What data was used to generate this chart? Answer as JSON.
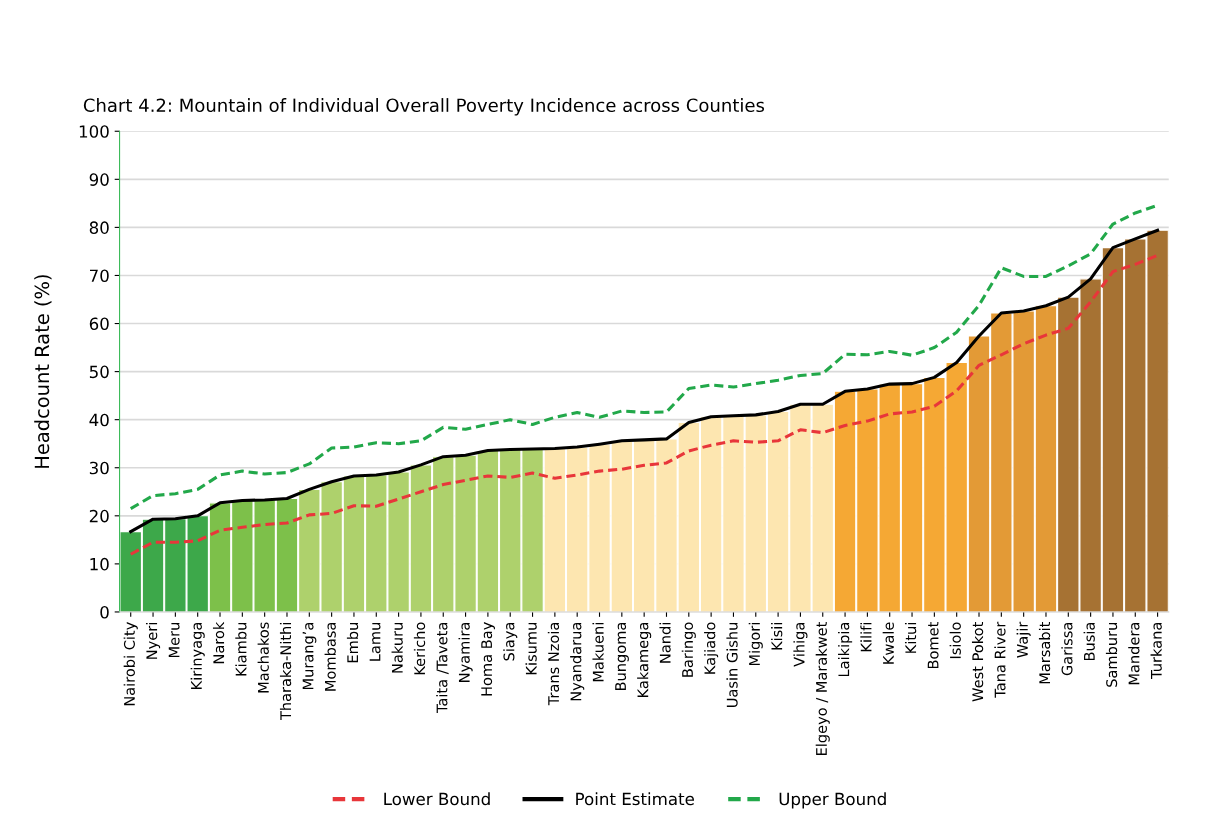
{
  "chart_data": {
    "type": "bar",
    "title": "Chart 4.2: Mountain of Individual Overall Poverty Incidence across Counties",
    "ylabel": "Headcount Rate (%)",
    "categories": [
      "Nairobi City",
      "Nyeri",
      "Meru",
      "Kirinyaga",
      "Narok",
      "Kiambu",
      "Machakos",
      "Tharaka-Nithi",
      "Murang’a",
      "Mombasa",
      "Embu",
      "Lamu",
      "Nakuru",
      "Kericho",
      "Taita /Taveta",
      "Nyamira",
      "Homa Bay",
      "Siaya",
      "Kisumu",
      "Trans Nzoia",
      "Nyandarua",
      "Makueni",
      "Bungoma",
      "Kakamega",
      "Nandi",
      "Baringo",
      "Kajiado",
      "Uasin Gishu",
      "Migori",
      "Kisii",
      "Vihiga",
      "Elgeyo / Marakwet",
      "Laikipia",
      "Kilifi",
      "Kwale",
      "Kitui",
      "Bomet",
      "Isiolo",
      "West Pokot",
      "Tana River",
      "Wajir",
      "Marsabit",
      "Garissa",
      "Busia",
      "Samburu",
      "Mandera",
      "Turkana"
    ],
    "series": [
      {
        "colors": [
          "#3da84a",
          "#3da84a",
          "#3da84a",
          "#3da84a",
          "#7dc04a",
          "#7dc04a",
          "#7dc04a",
          "#7dc04a",
          "#aed16c",
          "#aed16c",
          "#aed16c",
          "#aed16c",
          "#aed16c",
          "#aed16c",
          "#aed16c",
          "#aed16c",
          "#aed16c",
          "#aed16c",
          "#aed16c",
          "#fde6b0",
          "#fde6b0",
          "#fde6b0",
          "#fde6b0",
          "#fde6b0",
          "#fde6b0",
          "#fde6b0",
          "#fde6b0",
          "#fde6b0",
          "#fde6b0",
          "#fde6b0",
          "#fde6b0",
          "#fde6b0",
          "#f5a834",
          "#f5a834",
          "#f5a834",
          "#f5a834",
          "#f5a834",
          "#f5a834",
          "#e39a36",
          "#e39a36",
          "#e39a36",
          "#e39a36",
          "#a67233",
          "#a67233",
          "#a67233",
          "#a67233",
          "#a67233"
        ],
        "values": [
          16.7,
          19.3,
          19.4,
          20.0,
          22.7,
          23.2,
          23.3,
          23.6,
          25.5,
          27.1,
          28.3,
          28.5,
          29.1,
          30.6,
          32.3,
          32.6,
          33.6,
          33.8,
          33.9,
          34.0,
          34.3,
          34.9,
          35.6,
          35.8,
          36.0,
          39.4,
          40.6,
          40.8,
          41.0,
          41.7,
          43.2,
          43.2,
          45.9,
          46.4,
          47.4,
          47.5,
          48.8,
          51.9,
          57.4,
          62.2,
          62.6,
          63.7,
          65.5,
          69.3,
          75.8,
          77.6,
          79.4
        ]
      },
      {
        "type": "line",
        "name": "Lower Bound",
        "color": "#e8363a",
        "line_style": "dashed",
        "values": [
          12.0,
          14.5,
          14.5,
          14.8,
          17.0,
          17.6,
          18.2,
          18.5,
          20.2,
          20.5,
          22.1,
          22.0,
          23.5,
          25.0,
          26.5,
          27.4,
          28.3,
          28.0,
          28.9,
          27.8,
          28.5,
          29.3,
          29.7,
          30.5,
          31.0,
          33.5,
          34.7,
          35.6,
          35.3,
          35.6,
          37.9,
          37.3,
          38.8,
          39.7,
          41.2,
          41.6,
          42.8,
          46.0,
          51.3,
          53.5,
          55.8,
          57.6,
          59.0,
          64.5,
          70.8,
          72.3,
          74.2
        ]
      },
      {
        "type": "line",
        "name": "Point Estimate",
        "color": "#000000",
        "line_style": "solid",
        "values": [
          16.7,
          19.3,
          19.4,
          20.0,
          22.7,
          23.2,
          23.3,
          23.6,
          25.5,
          27.1,
          28.3,
          28.5,
          29.1,
          30.6,
          32.3,
          32.6,
          33.6,
          33.8,
          33.9,
          34.0,
          34.3,
          34.9,
          35.6,
          35.8,
          36.0,
          39.4,
          40.6,
          40.8,
          41.0,
          41.7,
          43.2,
          43.2,
          45.9,
          46.4,
          47.4,
          47.5,
          48.8,
          51.9,
          57.4,
          62.2,
          62.6,
          63.7,
          65.5,
          69.3,
          75.8,
          77.6,
          79.4
        ]
      },
      {
        "type": "line",
        "name": "Upper Bound",
        "color": "#22a84a",
        "line_style": "dashed",
        "values": [
          21.5,
          24.2,
          24.6,
          25.5,
          28.5,
          29.3,
          28.7,
          29.0,
          30.8,
          34.1,
          34.3,
          35.2,
          35.0,
          35.6,
          38.4,
          38.0,
          39.0,
          40.0,
          39.0,
          40.5,
          41.5,
          40.5,
          41.8,
          41.5,
          41.6,
          46.5,
          47.2,
          46.8,
          47.5,
          48.2,
          49.2,
          49.6,
          53.6,
          53.5,
          54.2,
          53.4,
          55.0,
          58.2,
          63.8,
          71.6,
          69.8,
          69.8,
          72.0,
          74.5,
          80.7,
          83.0,
          84.6
        ]
      }
    ],
    "ylim": [
      0,
      100
    ],
    "yticks": [
      0,
      10,
      20,
      30,
      40,
      50,
      60,
      70,
      80,
      90,
      100
    ],
    "grid": "y",
    "legend": "bottom"
  }
}
